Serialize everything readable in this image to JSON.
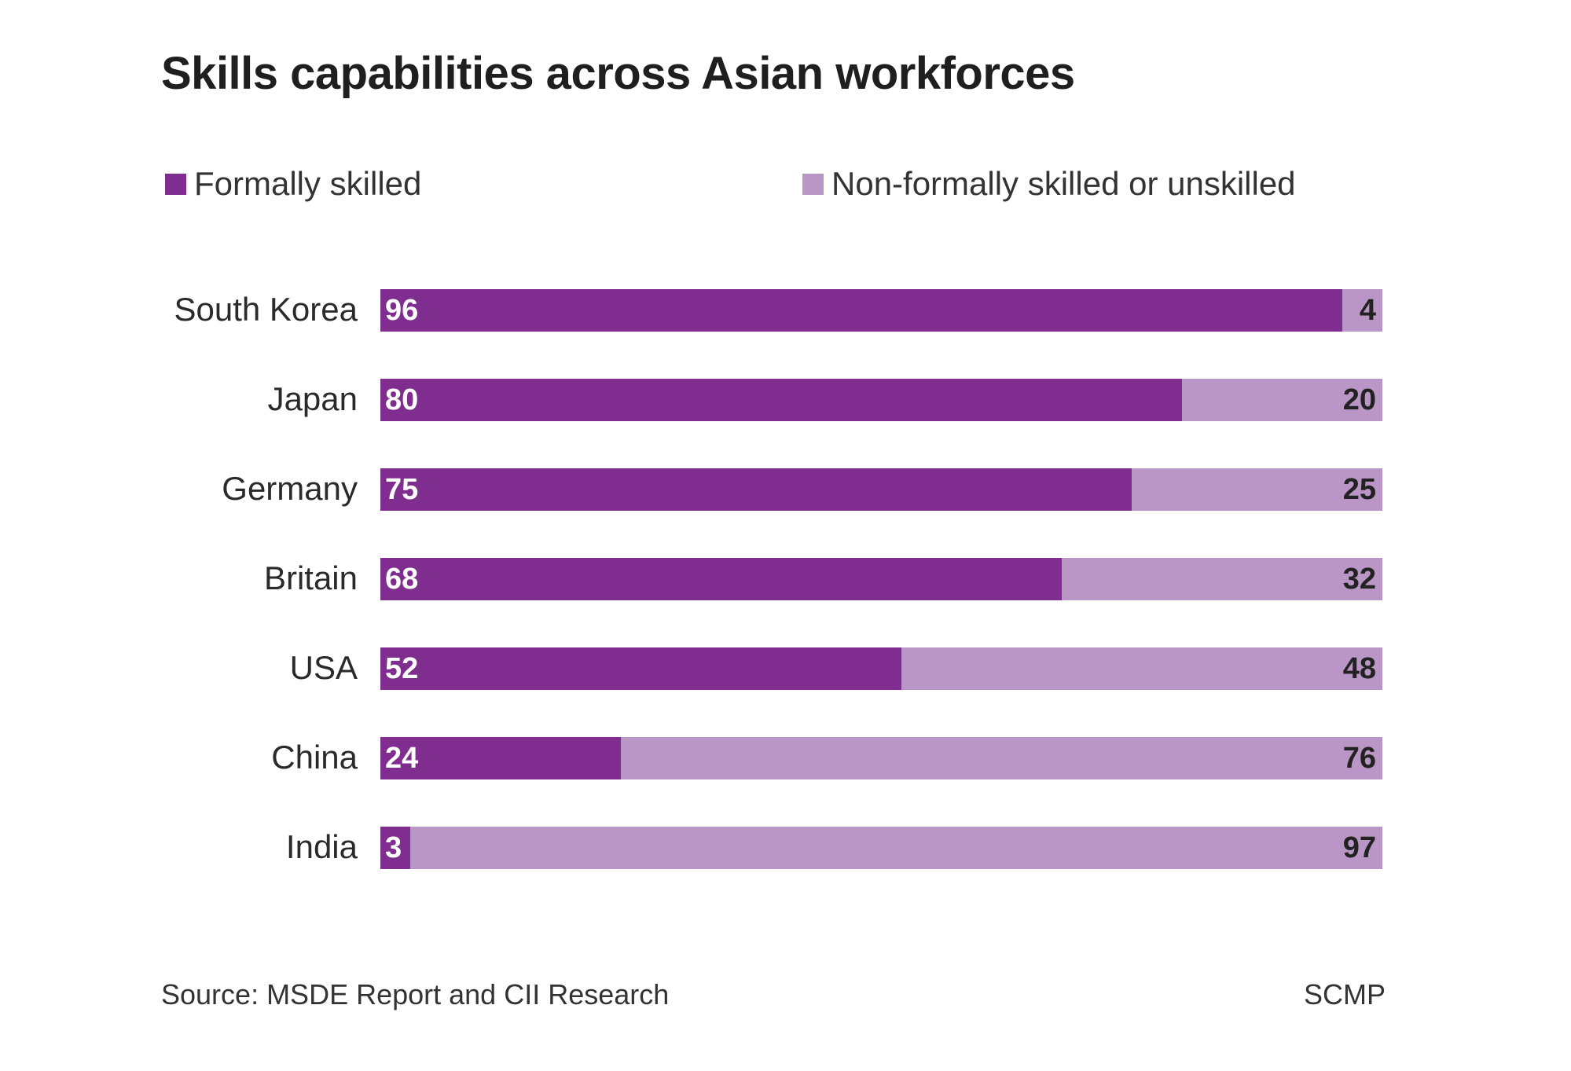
{
  "chart_data": {
    "type": "bar",
    "orientation": "horizontal",
    "stacked": true,
    "title": "Skills capabilities across Asian workforces",
    "categories": [
      "South Korea",
      "Japan",
      "Germany",
      "Britain",
      "USA",
      "China",
      "India"
    ],
    "series": [
      {
        "name": "Formally skilled",
        "color": "#7f2d8f",
        "values": [
          96,
          80,
          75,
          68,
          52,
          24,
          3
        ]
      },
      {
        "name": "Non-formally skilled or unskilled",
        "color": "#b996c5",
        "values": [
          4,
          20,
          25,
          32,
          48,
          76,
          97
        ]
      }
    ],
    "xlim": [
      0,
      100
    ],
    "grid": false,
    "legend": "top",
    "source": "Source: MSDE Report and CII Research",
    "credit": "SCMP"
  }
}
